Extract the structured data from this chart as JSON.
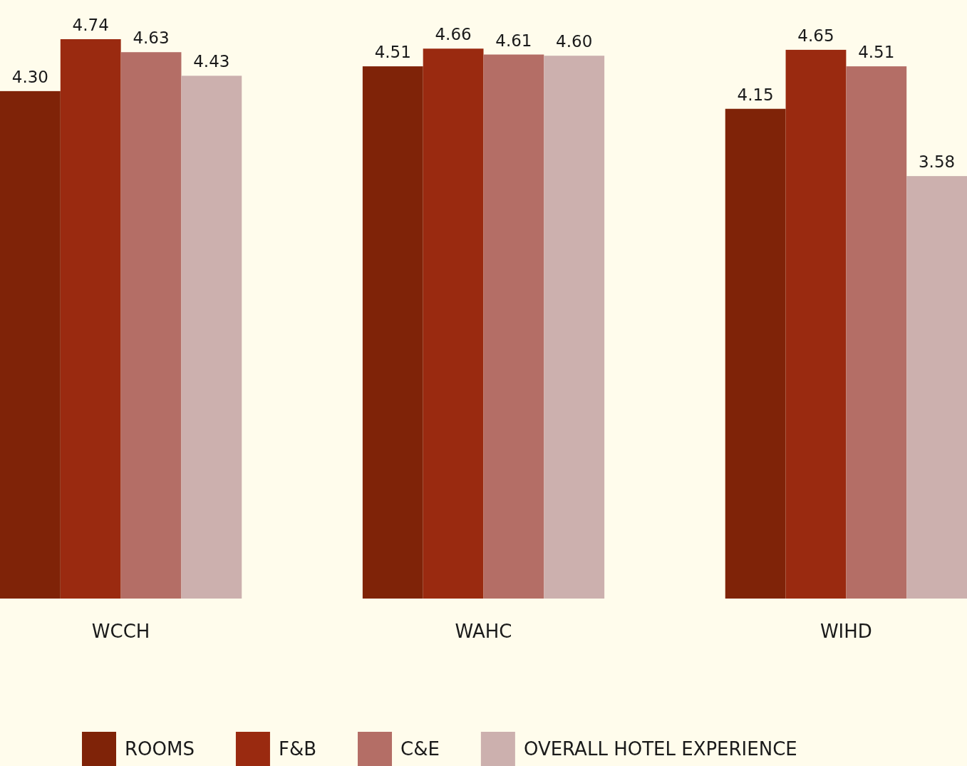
{
  "chart_data": {
    "type": "bar",
    "categories": [
      "WCCH",
      "WAHC",
      "WIHD"
    ],
    "series": [
      {
        "name": "ROOMS",
        "color": "#7f2308",
        "values": [
          4.3,
          4.51,
          4.15
        ],
        "value_labels": [
          "4.30",
          "4.51",
          "4.15"
        ]
      },
      {
        "name": "F&B",
        "color": "#9a2a10",
        "values": [
          4.74,
          4.66,
          4.65
        ],
        "value_labels": [
          "4.74",
          "4.66",
          "4.65"
        ]
      },
      {
        "name": "C&E",
        "color": "#b46e66",
        "values": [
          4.63,
          4.61,
          4.51
        ],
        "value_labels": [
          "4.63",
          "4.61",
          "4.51"
        ]
      },
      {
        "name": "OVERALL HOTEL EXPERIENCE",
        "color": "#ccb0ae",
        "values": [
          4.43,
          4.6,
          3.58
        ],
        "value_labels": [
          "4.43",
          "4.60",
          "3.58"
        ]
      }
    ],
    "legend": "bottom"
  }
}
